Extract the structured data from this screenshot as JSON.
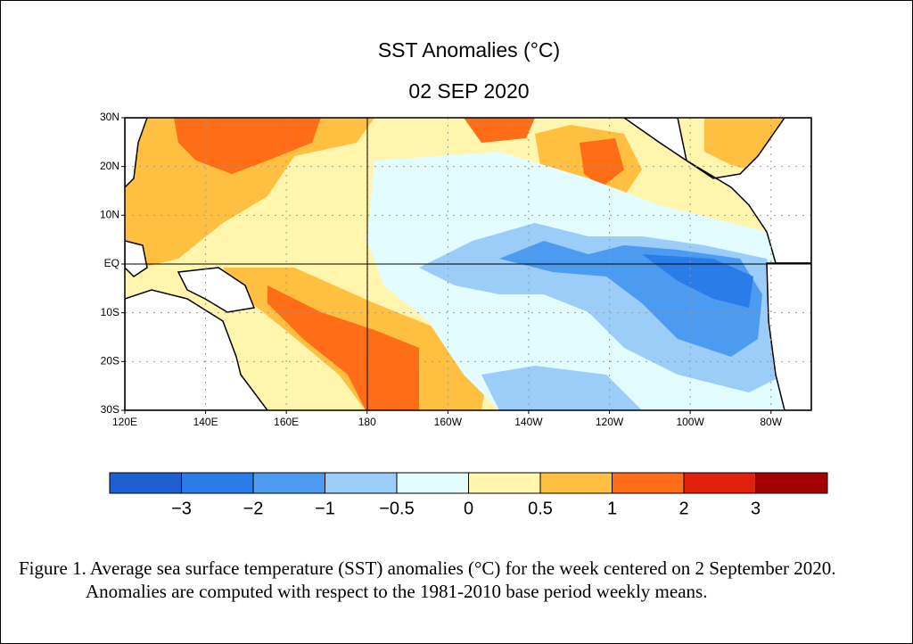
{
  "title": "SST Anomalies (°C)",
  "subtitle": "02 SEP 2020",
  "map": {
    "lat_labels": [
      "30N",
      "20N",
      "10N",
      "EQ",
      "10S",
      "20S",
      "30S"
    ],
    "lon_labels": [
      "120E",
      "140E",
      "160E",
      "180",
      "160W",
      "140W",
      "120W",
      "100W",
      "80W"
    ]
  },
  "colorbar": {
    "colors": [
      "#1e5fd2",
      "#2a7de8",
      "#4d9bf0",
      "#9ccdf8",
      "#e2fcff",
      "#fff5ac",
      "#ffbf41",
      "#ff6d17",
      "#e2200c",
      "#a50003"
    ],
    "labels": [
      "−3",
      "−2",
      "−1",
      "−0.5",
      "0",
      "0.5",
      "1",
      "2",
      "3"
    ]
  },
  "caption": "Figure 1. Average sea surface temperature (SST) anomalies (°C) for the week centered on 2 September 2020.  Anomalies are computed with respect to the 1981-2010 base period weekly means."
}
